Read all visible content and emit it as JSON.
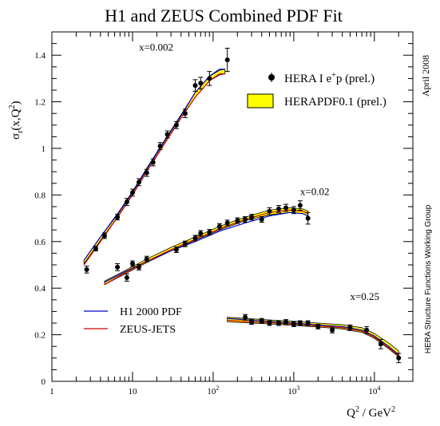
{
  "chart_data": {
    "type": "scatter",
    "title": "H1 and ZEUS Combined PDF Fit",
    "xlabel": "Q² / GeV²",
    "ylabel": "σr(x,Q²)",
    "xscale": "log",
    "xlim": [
      1,
      30000
    ],
    "ylim": [
      0,
      1.5
    ],
    "grid": false,
    "x_ticks": [
      {
        "v": 1,
        "base": "1",
        "exp": ""
      },
      {
        "v": 10,
        "base": "10",
        "exp": ""
      },
      {
        "v": 100,
        "base": "10",
        "exp": "2"
      },
      {
        "v": 1000,
        "base": "10",
        "exp": "3"
      },
      {
        "v": 10000,
        "base": "10",
        "exp": "4"
      }
    ],
    "y_ticks": [
      {
        "v": 0,
        "label": "0"
      },
      {
        "v": 0.2,
        "label": "0.2"
      },
      {
        "v": 0.4,
        "label": "0.4"
      },
      {
        "v": 0.6,
        "label": "0.6"
      },
      {
        "v": 0.8,
        "label": "0.8"
      },
      {
        "v": 1.0,
        "label": "1"
      },
      {
        "v": 1.2,
        "label": "1.2"
      },
      {
        "v": 1.4,
        "label": "1.4"
      }
    ],
    "side_text_top": "April 2008",
    "side_text_bottom": "HERA Structure Functions Working Group",
    "legend": {
      "placement": "top-right",
      "data_label": "HERA I e⁺p (prel.)",
      "band_label": "HERAPDF0.1 (prel.)",
      "band_color": "#ffff00"
    },
    "lines_legend": {
      "placement": "bottom-left",
      "items": [
        {
          "label": "H1 2000 PDF",
          "color": "#0000cc"
        },
        {
          "label": "ZEUS-JETS",
          "color": "#cc0000"
        }
      ]
    },
    "series": [
      {
        "label": "x=0.002",
        "label_q2": 12,
        "label_y": 1.42,
        "points": [
          {
            "q2": 2.7,
            "y": 0.48,
            "err": 0.015
          },
          {
            "q2": 3.5,
            "y": 0.57,
            "err": 0.01
          },
          {
            "q2": 4.5,
            "y": 0.625,
            "err": 0.012
          },
          {
            "q2": 6.5,
            "y": 0.705,
            "err": 0.012
          },
          {
            "q2": 8.5,
            "y": 0.77,
            "err": 0.015
          },
          {
            "q2": 10,
            "y": 0.81,
            "err": 0.015
          },
          {
            "q2": 12,
            "y": 0.855,
            "err": 0.015
          },
          {
            "q2": 15,
            "y": 0.895,
            "err": 0.015
          },
          {
            "q2": 18,
            "y": 0.94,
            "err": 0.015
          },
          {
            "q2": 22,
            "y": 1.01,
            "err": 0.015
          },
          {
            "q2": 27,
            "y": 1.06,
            "err": 0.015
          },
          {
            "q2": 35,
            "y": 1.1,
            "err": 0.015
          },
          {
            "q2": 45,
            "y": 1.15,
            "err": 0.018
          },
          {
            "q2": 60,
            "y": 1.27,
            "err": 0.025
          },
          {
            "q2": 70,
            "y": 1.28,
            "err": 0.025
          },
          {
            "q2": 90,
            "y": 1.3,
            "err": 0.03
          },
          {
            "q2": 150,
            "y": 1.38,
            "err": 0.05
          }
        ],
        "blue": [
          [
            2.5,
            0.52
          ],
          [
            4,
            0.62
          ],
          [
            7,
            0.73
          ],
          [
            10,
            0.81
          ],
          [
            15,
            0.91
          ],
          [
            25,
            1.03
          ],
          [
            40,
            1.14
          ],
          [
            60,
            1.24
          ],
          [
            90,
            1.31
          ],
          [
            120,
            1.34
          ],
          [
            140,
            1.34
          ]
        ],
        "red": [
          [
            2.5,
            0.5
          ],
          [
            4,
            0.6
          ],
          [
            7,
            0.72
          ],
          [
            10,
            0.8
          ],
          [
            15,
            0.9
          ],
          [
            25,
            1.02
          ],
          [
            40,
            1.13
          ],
          [
            60,
            1.22
          ],
          [
            90,
            1.29
          ],
          [
            120,
            1.32
          ],
          [
            140,
            1.32
          ]
        ],
        "band_lo": [
          [
            2.5,
            0.505
          ],
          [
            4,
            0.605
          ],
          [
            7,
            0.72
          ],
          [
            10,
            0.8
          ],
          [
            15,
            0.9
          ],
          [
            25,
            1.02
          ],
          [
            40,
            1.13
          ],
          [
            60,
            1.22
          ],
          [
            90,
            1.29
          ],
          [
            120,
            1.315
          ],
          [
            140,
            1.32
          ]
        ],
        "band_hi": [
          [
            2.5,
            0.52
          ],
          [
            4,
            0.62
          ],
          [
            7,
            0.735
          ],
          [
            10,
            0.815
          ],
          [
            15,
            0.915
          ],
          [
            25,
            1.035
          ],
          [
            40,
            1.145
          ],
          [
            60,
            1.24
          ],
          [
            90,
            1.31
          ],
          [
            120,
            1.335
          ],
          [
            140,
            1.34
          ]
        ]
      },
      {
        "label": "x=0.02",
        "label_q2": 1200,
        "label_y": 0.8,
        "points": [
          {
            "q2": 6.5,
            "y": 0.49,
            "err": 0.015
          },
          {
            "q2": 8.5,
            "y": 0.445,
            "err": 0.015
          },
          {
            "q2": 10,
            "y": 0.505,
            "err": 0.012
          },
          {
            "q2": 12,
            "y": 0.49,
            "err": 0.012
          },
          {
            "q2": 15,
            "y": 0.525,
            "err": 0.012
          },
          {
            "q2": 35,
            "y": 0.565,
            "err": 0.012
          },
          {
            "q2": 45,
            "y": 0.59,
            "err": 0.012
          },
          {
            "q2": 60,
            "y": 0.615,
            "err": 0.012
          },
          {
            "q2": 70,
            "y": 0.635,
            "err": 0.012
          },
          {
            "q2": 90,
            "y": 0.64,
            "err": 0.012
          },
          {
            "q2": 120,
            "y": 0.665,
            "err": 0.012
          },
          {
            "q2": 150,
            "y": 0.68,
            "err": 0.012
          },
          {
            "q2": 200,
            "y": 0.69,
            "err": 0.012
          },
          {
            "q2": 250,
            "y": 0.695,
            "err": 0.012
          },
          {
            "q2": 300,
            "y": 0.705,
            "err": 0.012
          },
          {
            "q2": 400,
            "y": 0.695,
            "err": 0.012
          },
          {
            "q2": 500,
            "y": 0.73,
            "err": 0.015
          },
          {
            "q2": 650,
            "y": 0.74,
            "err": 0.015
          },
          {
            "q2": 800,
            "y": 0.745,
            "err": 0.015
          },
          {
            "q2": 1000,
            "y": 0.735,
            "err": 0.015
          },
          {
            "q2": 1200,
            "y": 0.755,
            "err": 0.02
          },
          {
            "q2": 1500,
            "y": 0.7,
            "err": 0.025
          }
        ],
        "blue": [
          [
            4.5,
            0.425
          ],
          [
            8,
            0.47
          ],
          [
            15,
            0.515
          ],
          [
            30,
            0.56
          ],
          [
            60,
            0.6
          ],
          [
            120,
            0.645
          ],
          [
            250,
            0.68
          ],
          [
            500,
            0.71
          ],
          [
            900,
            0.725
          ],
          [
            1300,
            0.72
          ],
          [
            1500,
            0.71
          ]
        ],
        "red": [
          [
            4.5,
            0.415
          ],
          [
            8,
            0.465
          ],
          [
            15,
            0.515
          ],
          [
            30,
            0.565
          ],
          [
            60,
            0.61
          ],
          [
            120,
            0.655
          ],
          [
            250,
            0.695
          ],
          [
            500,
            0.725
          ],
          [
            900,
            0.735
          ],
          [
            1300,
            0.73
          ],
          [
            1500,
            0.72
          ]
        ],
        "band_lo": [
          [
            4.5,
            0.415
          ],
          [
            8,
            0.46
          ],
          [
            15,
            0.51
          ],
          [
            30,
            0.56
          ],
          [
            60,
            0.605
          ],
          [
            120,
            0.65
          ],
          [
            250,
            0.69
          ],
          [
            500,
            0.715
          ],
          [
            900,
            0.725
          ],
          [
            1300,
            0.72
          ],
          [
            1500,
            0.71
          ]
        ],
        "band_hi": [
          [
            4.5,
            0.43
          ],
          [
            8,
            0.475
          ],
          [
            15,
            0.525
          ],
          [
            30,
            0.575
          ],
          [
            60,
            0.62
          ],
          [
            120,
            0.665
          ],
          [
            250,
            0.705
          ],
          [
            500,
            0.735
          ],
          [
            900,
            0.745
          ],
          [
            1300,
            0.74
          ],
          [
            1500,
            0.73
          ]
        ]
      },
      {
        "label": "x=0.25",
        "label_q2": 5000,
        "label_y": 0.35,
        "points": [
          {
            "q2": 250,
            "y": 0.275,
            "err": 0.012
          },
          {
            "q2": 300,
            "y": 0.255,
            "err": 0.01
          },
          {
            "q2": 400,
            "y": 0.26,
            "err": 0.01
          },
          {
            "q2": 500,
            "y": 0.25,
            "err": 0.01
          },
          {
            "q2": 650,
            "y": 0.25,
            "err": 0.01
          },
          {
            "q2": 800,
            "y": 0.255,
            "err": 0.01
          },
          {
            "q2": 1000,
            "y": 0.245,
            "err": 0.01
          },
          {
            "q2": 1200,
            "y": 0.25,
            "err": 0.01
          },
          {
            "q2": 1500,
            "y": 0.25,
            "err": 0.01
          },
          {
            "q2": 2000,
            "y": 0.235,
            "err": 0.01
          },
          {
            "q2": 3000,
            "y": 0.22,
            "err": 0.012
          },
          {
            "q2": 5000,
            "y": 0.23,
            "err": 0.012
          },
          {
            "q2": 8000,
            "y": 0.22,
            "err": 0.015
          },
          {
            "q2": 12000,
            "y": 0.16,
            "err": 0.02
          },
          {
            "q2": 20000,
            "y": 0.1,
            "err": 0.02
          }
        ],
        "blue": [
          [
            150,
            0.27
          ],
          [
            300,
            0.262
          ],
          [
            600,
            0.255
          ],
          [
            1000,
            0.25
          ],
          [
            2000,
            0.242
          ],
          [
            4000,
            0.235
          ],
          [
            7000,
            0.22
          ],
          [
            10000,
            0.195
          ],
          [
            15000,
            0.15
          ],
          [
            20000,
            0.115
          ]
        ],
        "red": [
          [
            150,
            0.262
          ],
          [
            300,
            0.255
          ],
          [
            600,
            0.25
          ],
          [
            1000,
            0.245
          ],
          [
            2000,
            0.238
          ],
          [
            4000,
            0.23
          ],
          [
            7000,
            0.215
          ],
          [
            10000,
            0.19
          ],
          [
            15000,
            0.145
          ],
          [
            20000,
            0.11
          ]
        ],
        "band_lo": [
          [
            150,
            0.255
          ],
          [
            300,
            0.25
          ],
          [
            600,
            0.245
          ],
          [
            1000,
            0.24
          ],
          [
            2000,
            0.233
          ],
          [
            4000,
            0.225
          ],
          [
            7000,
            0.21
          ],
          [
            10000,
            0.185
          ],
          [
            15000,
            0.14
          ],
          [
            20000,
            0.105
          ]
        ],
        "band_hi": [
          [
            150,
            0.275
          ],
          [
            300,
            0.268
          ],
          [
            600,
            0.262
          ],
          [
            1000,
            0.258
          ],
          [
            2000,
            0.25
          ],
          [
            4000,
            0.243
          ],
          [
            7000,
            0.23
          ],
          [
            10000,
            0.205
          ],
          [
            15000,
            0.165
          ],
          [
            20000,
            0.13
          ]
        ]
      }
    ]
  }
}
